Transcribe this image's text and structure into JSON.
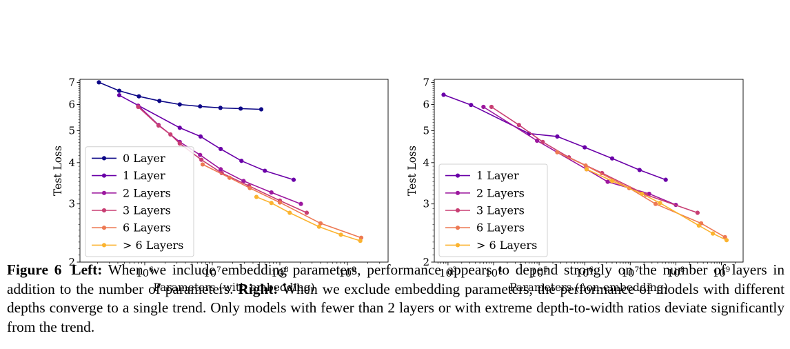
{
  "chart_data": [
    {
      "type": "line",
      "xlabel": "Parameters (with embedding)",
      "ylabel": "Test Loss",
      "xscale": "log",
      "yscale": "log",
      "xlim": [
        110000.0,
        4000000000.0
      ],
      "ylim": [
        2,
        7.15
      ],
      "xticks": [
        {
          "value": 1000000.0,
          "base": "10",
          "exp": "6"
        },
        {
          "value": 10000000.0,
          "base": "10",
          "exp": "7"
        },
        {
          "value": 100000000.0,
          "base": "10",
          "exp": "8"
        },
        {
          "value": 1000000000.0,
          "base": "10",
          "exp": "9"
        }
      ],
      "yticks": [
        2,
        3,
        4,
        5,
        6,
        7
      ],
      "legend_position": "lower-left",
      "grid": false,
      "series": [
        {
          "name": "0 Layer",
          "color": "#0d0887",
          "x": [
            210000.0,
            420000.0,
            820000.0,
            1650000.0,
            3300000.0,
            6600000.0,
            13200000.0,
            26300000.0,
            53000000.0
          ],
          "y": [
            7.0,
            6.6,
            6.35,
            6.15,
            6.0,
            5.92,
            5.86,
            5.83,
            5.8
          ]
        },
        {
          "name": "1 Layer",
          "color": "#6a00a8",
          "x": [
            420000.0,
            3300000.0,
            6700000.0,
            13300000.0,
            27000000.0,
            60000000.0,
            160000000.0
          ],
          "y": [
            6.4,
            5.1,
            4.8,
            4.4,
            4.05,
            3.78,
            3.55
          ]
        },
        {
          "name": "2 Layers",
          "color": "#9c179e",
          "x": [
            800000.0,
            1600000.0,
            3300000.0,
            6600000.0,
            13300000.0,
            29000000.0,
            75000000.0,
            205000000.0
          ],
          "y": [
            5.95,
            5.2,
            4.62,
            4.22,
            3.82,
            3.52,
            3.25,
            3.0
          ]
        },
        {
          "name": "3 Layers",
          "color": "#c83e73",
          "x": [
            800000.0,
            1600000.0,
            2400000.0,
            3300000.0,
            6900000.0,
            13800000.0,
            35000000.0,
            100000000.0,
            250000000.0
          ],
          "y": [
            5.9,
            5.18,
            4.87,
            4.57,
            4.08,
            3.72,
            3.4,
            3.07,
            2.82
          ]
        },
        {
          "name": "6 Layers",
          "color": "#ed7953",
          "x": [
            7200000.0,
            18000000.0,
            36000000.0,
            100000000.0,
            400000000.0,
            1600000000.0
          ],
          "y": [
            3.95,
            3.6,
            3.35,
            3.03,
            2.62,
            2.37
          ]
        },
        {
          "name": "> 6 Layers",
          "color": "#fbb32f",
          "x": [
            45000000.0,
            75000000.0,
            140000000.0,
            380000000.0,
            800000000.0,
            1550000000.0
          ],
          "y": [
            3.15,
            3.02,
            2.82,
            2.56,
            2.42,
            2.32
          ]
        }
      ]
    },
    {
      "type": "line",
      "xlabel": "Parameters (non-embedding)",
      "ylabel": "Test Loss",
      "xscale": "log",
      "yscale": "log",
      "xlim": [
        500,
        3000000000.0
      ],
      "ylim": [
        2,
        7.15
      ],
      "xticks": [
        {
          "value": 1000.0,
          "base": "10",
          "exp": "3"
        },
        {
          "value": 10000.0,
          "base": "10",
          "exp": "4"
        },
        {
          "value": 100000.0,
          "base": "10",
          "exp": "5"
        },
        {
          "value": 1000000.0,
          "base": "10",
          "exp": "6"
        },
        {
          "value": 10000000.0,
          "base": "10",
          "exp": "7"
        },
        {
          "value": 100000000.0,
          "base": "10",
          "exp": "8"
        },
        {
          "value": 1000000000.0,
          "base": "10",
          "exp": "9"
        }
      ],
      "yticks": [
        2,
        3,
        4,
        5,
        6,
        7
      ],
      "legend_position": "lower-left",
      "grid": false,
      "series": [
        {
          "name": "1 Layer",
          "color": "#6a00a8",
          "x": [
            800,
            3200.0,
            60000.0,
            250000.0,
            1000000.0,
            4000000.0,
            16000000.0,
            60000000.0
          ],
          "y": [
            6.42,
            5.98,
            4.9,
            4.8,
            4.45,
            4.12,
            3.8,
            3.55
          ]
        },
        {
          "name": "2 Layers",
          "color": "#9c179e",
          "x": [
            6000.0,
            90000.0,
            1100000.0,
            3200000.0,
            26000000.0,
            100000000.0
          ],
          "y": [
            5.9,
            4.66,
            3.82,
            3.5,
            3.22,
            2.98
          ]
        },
        {
          "name": "3 Layers",
          "color": "#c83e73",
          "x": [
            9000.0,
            36000.0,
            120000.0,
            450000.0,
            2400000.0,
            22000000.0,
            300000000.0
          ],
          "y": [
            5.9,
            5.2,
            4.62,
            4.15,
            3.72,
            3.2,
            2.82
          ]
        },
        {
          "name": "6 Layers",
          "color": "#ed7953",
          "x": [
            250000.0,
            1050000.0,
            9500000.0,
            36000000.0,
            360000000.0,
            1200000000.0
          ],
          "y": [
            4.3,
            3.92,
            3.35,
            3.0,
            2.62,
            2.38
          ]
        },
        {
          "name": "> 6 Layers",
          "color": "#fbb32f",
          "x": [
            1100000.0,
            4000000.0,
            18000000.0,
            45000000.0,
            320000000.0,
            650000000.0,
            1300000000.0
          ],
          "y": [
            3.82,
            3.52,
            3.22,
            3.02,
            2.58,
            2.44,
            2.33
          ]
        }
      ]
    }
  ],
  "caption": {
    "label": "Figure 6",
    "left_label": "Left:",
    "left_text": "When we include embedding parameters, performance appears to depend strongly on the number of layers in addition to the number of parameters.",
    "right_label": "Right:",
    "right_text": "When we exclude embedding parameters, the performance of models with different depths converge to a single trend. Only models with fewer than 2 layers or with extreme depth-to-width ratios deviate significantly from the trend."
  }
}
